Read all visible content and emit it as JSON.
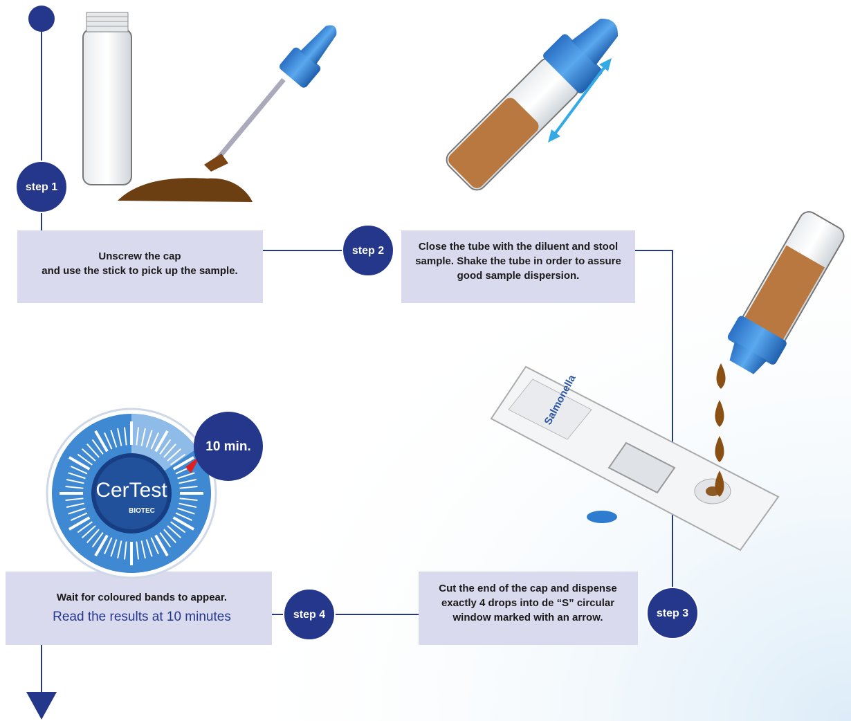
{
  "steps": [
    {
      "label": "step 1",
      "lines": [
        "Unscrew the cap",
        "and use the stick to pick up the sample."
      ]
    },
    {
      "label": "step 2",
      "lines": [
        "Close the tube with the diluent and stool",
        "sample. Shake the tube in order to assure",
        "good sample dispersion."
      ]
    },
    {
      "label": "step 3",
      "lines": [
        "Cut the end of the cap and dispense",
        "exactly 4 drops into de “S” circular",
        "window marked with an arrow."
      ]
    },
    {
      "label": "step 4",
      "lines": [
        "Wait for coloured bands to appear."
      ],
      "highlight": "Read the results at 10 minutes"
    }
  ],
  "cassette_label": "Salmonella",
  "timer": {
    "time": "10 min.",
    "brand": "CerTest",
    "sub": "BIOTEC"
  }
}
